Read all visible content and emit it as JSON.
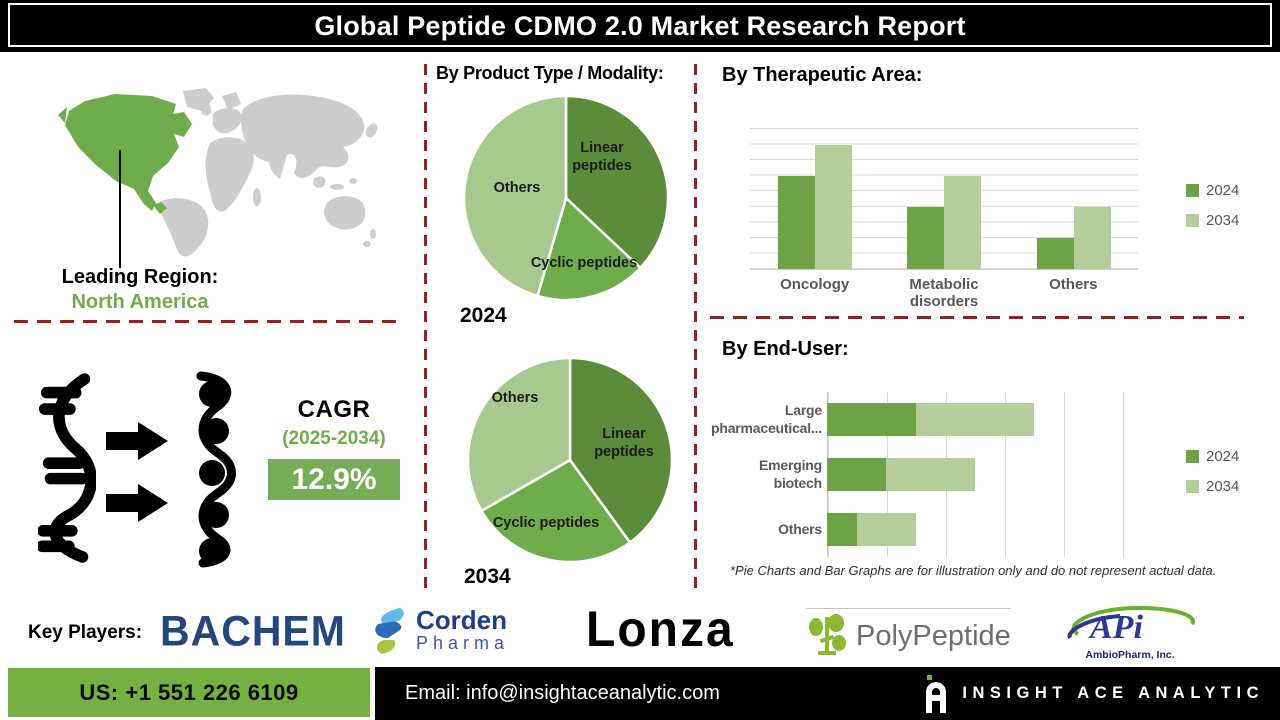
{
  "title": "Global Peptide CDMO 2.0 Market Research Report",
  "colors": {
    "accent_green": "#6fad4c",
    "light_green": "#b3ce9a",
    "dark_slice_green": "#5b8c3a",
    "map_green": "#6fad4c",
    "map_gray": "#cdcdcd",
    "dashed_line_red": "#9b1f1f",
    "footer_green": "#76b043",
    "cagr_box_green": "#77ad56",
    "series_2024": "#6da345",
    "series_2034": "#b3ce9a"
  },
  "leading_region": {
    "label": "Leading Region:",
    "value": "North America"
  },
  "cagr": {
    "label": "CAGR",
    "period": "(2025-2034)",
    "value": "12.9%"
  },
  "sections": {
    "product_type": {
      "heading": "By Product Type / Modality:",
      "pie1_caption": "2024",
      "pie2_caption": "2034"
    },
    "therapeutic": {
      "heading": "By Therapeutic Area:"
    },
    "end_user": {
      "heading": "By End-User:"
    },
    "footnote": "*Pie Charts and Bar Graphs are for illustration only and do not represent actual data."
  },
  "key_players": {
    "label": "Key Players:",
    "players": [
      {
        "name": "BACHEM"
      },
      {
        "name": "Corden",
        "sub": "Pharma"
      },
      {
        "name": "Lonza"
      },
      {
        "name": "PolyPeptide"
      },
      {
        "name": "APi",
        "sub": "AmbioPharm, Inc."
      }
    ]
  },
  "footer": {
    "phone": "US: +1 551 226 6109",
    "email": "Email: info@insightaceanalytic.com",
    "brand": "INSIGHT ACE ANALYTIC"
  },
  "chart_data": [
    {
      "type": "pie",
      "title": "By Product Type / Modality — 2024",
      "slices": [
        {
          "label": "Linear peptides",
          "value": 37
        },
        {
          "label": "Cyclic peptides",
          "value": 17.5
        },
        {
          "label": "Others",
          "value": 45.5
        }
      ],
      "colors": [
        "#5b8c3a",
        "#6fad4c",
        "#a7c98d"
      ],
      "note": "values are percent of circle, illustration only"
    },
    {
      "type": "pie",
      "title": "By Product Type / Modality — 2034",
      "slices": [
        {
          "label": "Linear peptides",
          "value": 40
        },
        {
          "label": "Cyclic peptides",
          "value": 26.7
        },
        {
          "label": "Others",
          "value": 33.3
        }
      ],
      "colors": [
        "#5b8c3a",
        "#6fad4c",
        "#a7c98d"
      ],
      "note": "values are percent of circle, illustration only"
    },
    {
      "type": "bar",
      "title": "By Therapeutic Area:",
      "categories": [
        "Oncology",
        "Metabolic disorders",
        "Others"
      ],
      "series": [
        {
          "name": "2024",
          "values": [
            6,
            4,
            2
          ]
        },
        {
          "name": "2034",
          "values": [
            8,
            6,
            4
          ]
        }
      ],
      "colors": [
        "#6da345",
        "#b3ce9a"
      ],
      "ylim": [
        0,
        9
      ],
      "grid": true,
      "legend_position": "right",
      "note": "no numeric axis labels shown; heights estimated from gridlines, illustration only"
    },
    {
      "type": "bar-horizontal-stacked",
      "title": "By End-User:",
      "categories": [
        "Large pharmaceutical...",
        "Emerging biotech",
        "Others"
      ],
      "series": [
        {
          "name": "2024",
          "values": [
            1.5,
            1.0,
            0.5
          ]
        },
        {
          "name": "2034",
          "values": [
            2.0,
            1.5,
            1.0
          ]
        }
      ],
      "colors": [
        "#6da345",
        "#b3ce9a"
      ],
      "xlim": [
        0,
        4.5
      ],
      "grid": true,
      "legend_position": "right",
      "note": "no numeric axis labels shown; lengths estimated from gridlines, illustration only"
    }
  ]
}
